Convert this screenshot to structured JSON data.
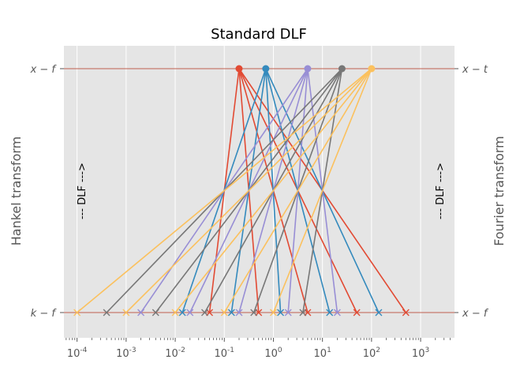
{
  "chart_data": {
    "type": "line",
    "title": "Standard DLF",
    "xscale": "log",
    "xlim": [
      5.4e-05,
      4900.0
    ],
    "grid": true,
    "ylabel_left": "Hankel transform",
    "ylabel_right": "Fourier transform",
    "yticks_left": [
      "x − f",
      "k − f"
    ],
    "yticks_right": [
      "x − t",
      "x − f"
    ],
    "annotation_left": "--- DLF --->",
    "annotation_right": "--- DLF --->",
    "xtick_exponents": [
      "-4",
      "-3",
      "-2",
      "-1",
      "0",
      "1",
      "2",
      "3"
    ],
    "filter_base": [
      0.01,
      0.1,
      1,
      10,
      100
    ],
    "series": [
      {
        "color": "#E24A33",
        "top": 0.2,
        "bottom": [
          0.05,
          0.5,
          5,
          50,
          500
        ]
      },
      {
        "color": "#348ABD",
        "top": 0.7,
        "bottom": [
          0.014,
          0.14,
          1.4,
          14,
          140
        ]
      },
      {
        "color": "#988ED5",
        "top": 5,
        "bottom": [
          0.002,
          0.02,
          0.2,
          2,
          20
        ]
      },
      {
        "color": "#777777",
        "top": 25,
        "bottom": [
          0.0004,
          0.004,
          0.04,
          0.4,
          4
        ]
      },
      {
        "color": "#FBC15E",
        "top": 100,
        "bottom": [
          0.0001,
          0.001,
          0.01,
          0.1,
          1
        ]
      }
    ]
  }
}
